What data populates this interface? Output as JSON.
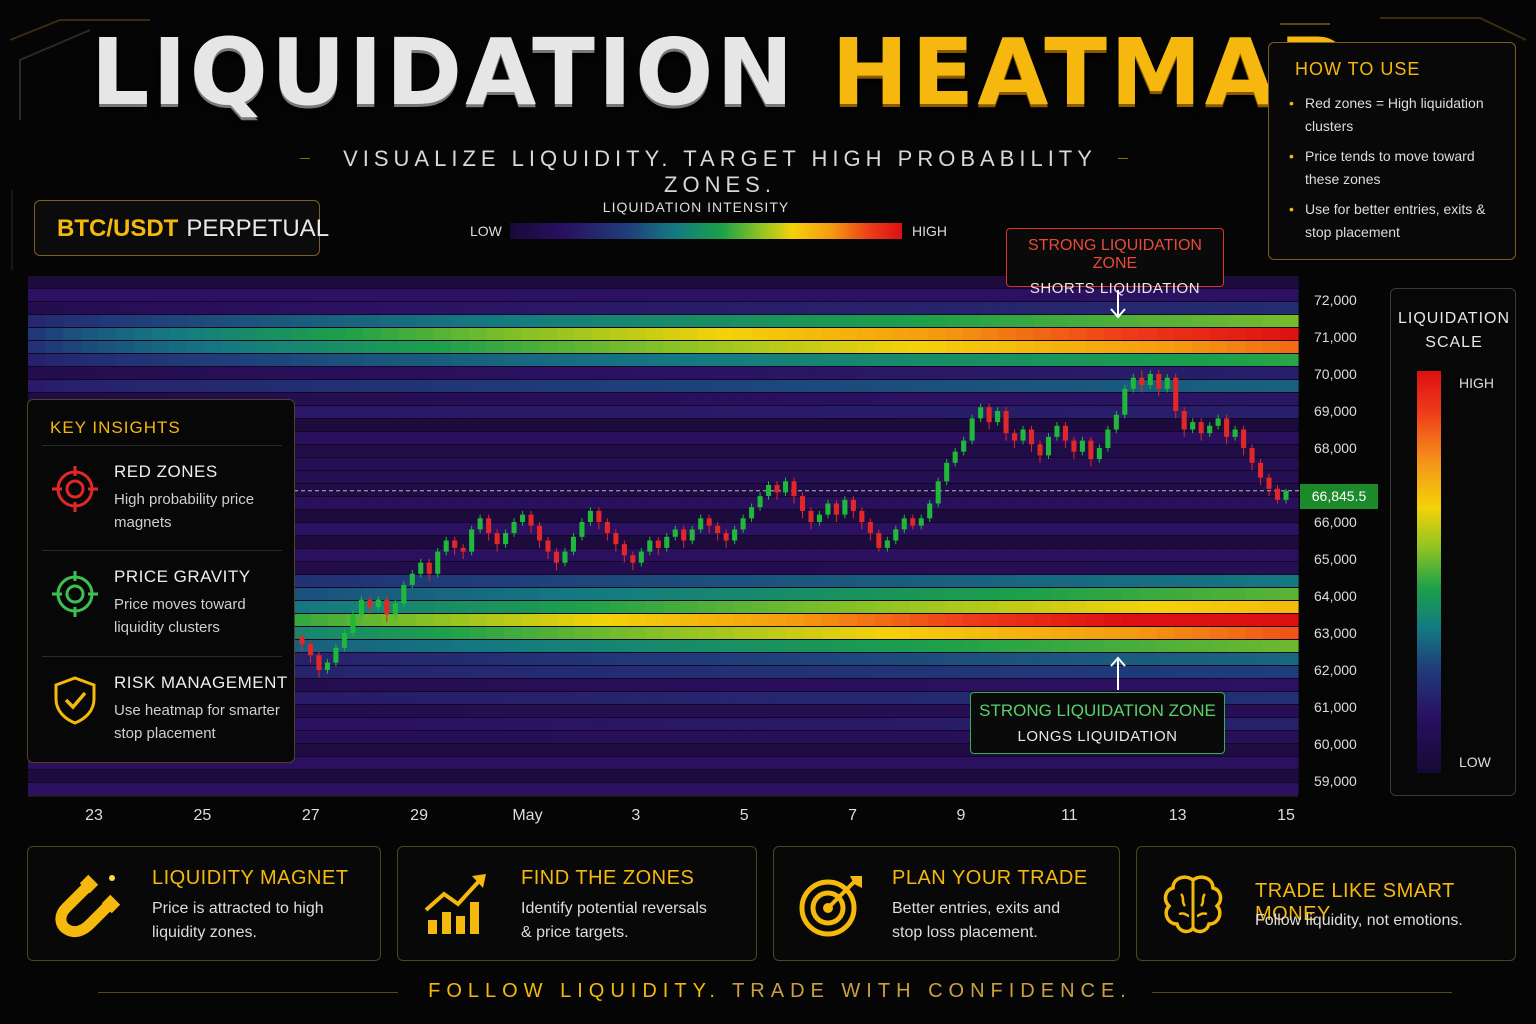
{
  "header": {
    "title_part1": "LIQUIDATION",
    "title_part2": "HEATMAP",
    "subtitle": "VISUALIZE LIQUIDITY. TARGET HIGH PROBABILITY ZONES."
  },
  "pair": {
    "symbol": "BTC/USDT",
    "type": "PERPETUAL"
  },
  "intensity_legend": {
    "title": "LIQUIDATION INTENSITY",
    "low": "LOW",
    "high": "HIGH"
  },
  "how_to_use": {
    "title": "HOW TO USE",
    "items": [
      "Red zones = High liquidation clusters",
      "Price tends to move toward these zones",
      "Use for better entries, exits & stop placement"
    ]
  },
  "liquidation_scale": {
    "title": "LIQUIDATION SCALE",
    "high": "HIGH",
    "low": "LOW"
  },
  "zones": {
    "short": {
      "title": "STRONG LIQUIDATION ZONE",
      "subtitle": "SHORTS LIQUIDATION"
    },
    "long": {
      "title": "STRONG LIQUIDATION ZONE",
      "subtitle": "LONGS LIQUIDATION"
    }
  },
  "key_insights": {
    "title": "KEY INSIGHTS",
    "items": [
      {
        "title": "RED ZONES",
        "desc": "High probability price magnets",
        "icon": "target-icon-red"
      },
      {
        "title": "PRICE GRAVITY",
        "desc": "Price moves toward liquidity clusters",
        "icon": "target-icon-green"
      },
      {
        "title": "RISK MANAGEMENT",
        "desc": "Use heatmap for smarter stop placement",
        "icon": "shield-check-icon"
      }
    ]
  },
  "features": [
    {
      "title": "LIQUIDITY MAGNET",
      "desc1": "Price is attracted to high",
      "desc2": "liquidity zones.",
      "icon": "magnet-icon"
    },
    {
      "title": "FIND THE ZONES",
      "desc1": "Identify potential reversals",
      "desc2": "& price targets.",
      "icon": "growth-chart-icon"
    },
    {
      "title": "PLAN YOUR TRADE",
      "desc1": "Better entries, exits and",
      "desc2": "stop loss placement.",
      "icon": "target-arrow-icon"
    },
    {
      "title": "TRADE LIKE SMART MONEY",
      "desc1": "Follow liquidity, not emotions.",
      "desc2": "",
      "icon": "brain-icon"
    }
  ],
  "footer": {
    "part1": "FOLLOW LIQUIDITY.",
    "part2": "TRADE WITH CONFIDENCE."
  },
  "colors": {
    "accent": "#f5b80c",
    "up": "#1fb83a",
    "down": "#e02828",
    "short_zone": "#e03030",
    "long_zone": "#34b050"
  },
  "chart_data": {
    "type": "heatmap",
    "current_price_label": "66,845.5",
    "current_price": 66845.5,
    "x_tick_labels": [
      "23",
      "25",
      "27",
      "29",
      "May",
      "3",
      "5",
      "7",
      "9",
      "11",
      "13",
      "15"
    ],
    "y_tick_labels": [
      "72,000",
      "71,000",
      "70,000",
      "69,000",
      "68,000",
      "66,000",
      "65,000",
      "64,000",
      "63,000",
      "62,000",
      "61,000",
      "60,000",
      "59,000"
    ],
    "y_tick_values": [
      72000,
      71000,
      70000,
      69000,
      68000,
      66000,
      65000,
      64000,
      63000,
      62000,
      61000,
      60000,
      59000
    ],
    "ylim": [
      59000,
      72000
    ],
    "liquidation_bands": [
      {
        "price": 71500,
        "peak_intensity": 0.55
      },
      {
        "price": 71000,
        "peak_intensity": 1.0
      },
      {
        "price": 70700,
        "peak_intensity": 0.8
      },
      {
        "price": 70300,
        "peak_intensity": 0.45
      },
      {
        "price": 69700,
        "peak_intensity": 0.22
      },
      {
        "price": 69200,
        "peak_intensity": 0.12
      },
      {
        "price": 64400,
        "peak_intensity": 0.28
      },
      {
        "price": 64000,
        "peak_intensity": 0.5
      },
      {
        "price": 63600,
        "peak_intensity": 0.8
      },
      {
        "price": 63300,
        "peak_intensity": 1.0
      },
      {
        "price": 63000,
        "peak_intensity": 0.85
      },
      {
        "price": 62700,
        "peak_intensity": 0.5
      },
      {
        "price": 62300,
        "peak_intensity": 0.3
      },
      {
        "price": 61800,
        "peak_intensity": 0.18
      },
      {
        "price": 61300,
        "peak_intensity": 0.12
      },
      {
        "price": 60600,
        "peak_intensity": 0.1
      }
    ],
    "candles": [
      [
        62900,
        62700,
        63000,
        62500
      ],
      [
        62700,
        62400,
        62800,
        62200
      ],
      [
        62400,
        62000,
        62500,
        61800
      ],
      [
        62000,
        62200,
        62300,
        61900
      ],
      [
        62200,
        62600,
        62700,
        62100
      ],
      [
        62600,
        63000,
        63100,
        62500
      ],
      [
        63000,
        63500,
        63600,
        62900
      ],
      [
        63500,
        63900,
        64000,
        63400
      ],
      [
        63900,
        63700,
        64000,
        63500
      ],
      [
        63700,
        63900,
        64000,
        63600
      ],
      [
        63900,
        63500,
        64000,
        63300
      ],
      [
        63500,
        63800,
        63900,
        63400
      ],
      [
        63800,
        64300,
        64400,
        63700
      ],
      [
        64300,
        64600,
        64700,
        64200
      ],
      [
        64600,
        64900,
        65000,
        64500
      ],
      [
        64900,
        64600,
        65000,
        64400
      ],
      [
        64600,
        65200,
        65300,
        64500
      ],
      [
        65200,
        65500,
        65600,
        65100
      ],
      [
        65500,
        65300,
        65600,
        65100
      ],
      [
        65300,
        65200,
        65400,
        65000
      ],
      [
        65200,
        65800,
        65900,
        65100
      ],
      [
        65800,
        66100,
        66200,
        65700
      ],
      [
        66100,
        65700,
        66200,
        65500
      ],
      [
        65700,
        65400,
        65800,
        65200
      ],
      [
        65400,
        65700,
        65800,
        65300
      ],
      [
        65700,
        66000,
        66100,
        65600
      ],
      [
        66000,
        66200,
        66300,
        65900
      ],
      [
        66200,
        65900,
        66300,
        65700
      ],
      [
        65900,
        65500,
        66000,
        65300
      ],
      [
        65500,
        65200,
        65600,
        65000
      ],
      [
        65200,
        64900,
        65300,
        64700
      ],
      [
        64900,
        65200,
        65300,
        64800
      ],
      [
        65200,
        65600,
        65700,
        65100
      ],
      [
        65600,
        66000,
        66100,
        65500
      ],
      [
        66000,
        66300,
        66400,
        65900
      ],
      [
        66300,
        66000,
        66400,
        65800
      ],
      [
        66000,
        65700,
        66100,
        65500
      ],
      [
        65700,
        65400,
        65800,
        65200
      ],
      [
        65400,
        65100,
        65500,
        64900
      ],
      [
        65100,
        64900,
        65200,
        64700
      ],
      [
        64900,
        65200,
        65300,
        64800
      ],
      [
        65200,
        65500,
        65600,
        65100
      ],
      [
        65500,
        65300,
        65600,
        65100
      ],
      [
        65300,
        65600,
        65700,
        65200
      ],
      [
        65600,
        65800,
        65900,
        65500
      ],
      [
        65800,
        65500,
        65900,
        65300
      ],
      [
        65500,
        65800,
        65900,
        65400
      ],
      [
        65800,
        66100,
        66200,
        65700
      ],
      [
        66100,
        65900,
        66200,
        65700
      ],
      [
        65900,
        65700,
        66000,
        65500
      ],
      [
        65700,
        65500,
        65800,
        65300
      ],
      [
        65500,
        65800,
        65900,
        65400
      ],
      [
        65800,
        66100,
        66200,
        65700
      ],
      [
        66100,
        66400,
        66500,
        66000
      ],
      [
        66400,
        66700,
        66800,
        66300
      ],
      [
        66700,
        67000,
        67100,
        66600
      ],
      [
        67000,
        66800,
        67100,
        66600
      ],
      [
        66800,
        67100,
        67200,
        66700
      ],
      [
        67100,
        66700,
        67200,
        66500
      ],
      [
        66700,
        66300,
        66800,
        66100
      ],
      [
        66300,
        66000,
        66400,
        65800
      ],
      [
        66000,
        66200,
        66300,
        65900
      ],
      [
        66200,
        66500,
        66600,
        66100
      ],
      [
        66500,
        66200,
        66600,
        66000
      ],
      [
        66200,
        66600,
        66700,
        66100
      ],
      [
        66600,
        66300,
        66700,
        66100
      ],
      [
        66300,
        66000,
        66400,
        65800
      ],
      [
        66000,
        65700,
        66100,
        65500
      ],
      [
        65700,
        65300,
        65800,
        65200
      ],
      [
        65300,
        65500,
        65600,
        65200
      ],
      [
        65500,
        65800,
        65900,
        65400
      ],
      [
        65800,
        66100,
        66200,
        65700
      ],
      [
        66100,
        65900,
        66200,
        65800
      ],
      [
        65900,
        66100,
        66200,
        65800
      ],
      [
        66100,
        66500,
        66600,
        66000
      ],
      [
        66500,
        67100,
        67200,
        66400
      ],
      [
        67100,
        67600,
        67700,
        67000
      ],
      [
        67600,
        67900,
        68000,
        67500
      ],
      [
        67900,
        68200,
        68300,
        67800
      ],
      [
        68200,
        68800,
        68900,
        68100
      ],
      [
        68800,
        69100,
        69200,
        68700
      ],
      [
        69100,
        68700,
        69200,
        68500
      ],
      [
        68700,
        69000,
        69100,
        68600
      ],
      [
        69000,
        68400,
        69100,
        68200
      ],
      [
        68400,
        68200,
        68500,
        68000
      ],
      [
        68200,
        68500,
        68600,
        68100
      ],
      [
        68500,
        68100,
        68600,
        67900
      ],
      [
        68100,
        67800,
        68200,
        67600
      ],
      [
        67800,
        68300,
        68400,
        67700
      ],
      [
        68300,
        68600,
        68700,
        68200
      ],
      [
        68600,
        68200,
        68700,
        68000
      ],
      [
        68200,
        67900,
        68300,
        67700
      ],
      [
        67900,
        68200,
        68300,
        67800
      ],
      [
        68200,
        67700,
        68300,
        67500
      ],
      [
        67700,
        68000,
        68100,
        67600
      ],
      [
        68000,
        68500,
        68600,
        67900
      ],
      [
        68500,
        68900,
        69000,
        68400
      ],
      [
        68900,
        69600,
        69700,
        68800
      ],
      [
        69600,
        69900,
        70000,
        69500
      ],
      [
        69900,
        69700,
        70100,
        69500
      ],
      [
        69700,
        70000,
        70100,
        69600
      ],
      [
        70000,
        69600,
        70100,
        69400
      ],
      [
        69600,
        69900,
        70000,
        69500
      ],
      [
        69900,
        69000,
        70000,
        68800
      ],
      [
        69000,
        68500,
        69100,
        68300
      ],
      [
        68500,
        68700,
        68800,
        68400
      ],
      [
        68700,
        68400,
        68800,
        68200
      ],
      [
        68400,
        68600,
        68700,
        68300
      ],
      [
        68600,
        68800,
        68900,
        68500
      ],
      [
        68800,
        68300,
        68900,
        68100
      ],
      [
        68300,
        68500,
        68600,
        68200
      ],
      [
        68500,
        68000,
        68600,
        67800
      ],
      [
        68000,
        67600,
        68100,
        67400
      ],
      [
        67600,
        67200,
        67700,
        67000
      ],
      [
        67200,
        66900,
        67300,
        66700
      ],
      [
        66900,
        66600,
        67000,
        66500
      ],
      [
        66600,
        66845,
        66900,
        66500
      ]
    ]
  }
}
